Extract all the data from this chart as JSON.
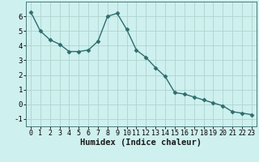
{
  "x": [
    0,
    1,
    2,
    3,
    4,
    5,
    6,
    7,
    8,
    9,
    10,
    11,
    12,
    13,
    14,
    15,
    16,
    17,
    18,
    19,
    20,
    21,
    22,
    23
  ],
  "y": [
    6.3,
    5.0,
    4.4,
    4.1,
    3.6,
    3.6,
    3.7,
    4.3,
    6.0,
    6.2,
    5.1,
    3.7,
    3.2,
    2.5,
    1.9,
    0.8,
    0.7,
    0.5,
    0.3,
    0.1,
    -0.1,
    -0.5,
    -0.6,
    -0.7
  ],
  "line_color": "#2d6e6e",
  "marker": "D",
  "markersize": 2.5,
  "linewidth": 1.0,
  "bg_color": "#cef0ee",
  "grid_color": "#aed4d0",
  "xlabel": "Humidex (Indice chaleur)",
  "xlabel_fontsize": 7.5,
  "xlabel_bold": true,
  "xlim": [
    -0.5,
    23.5
  ],
  "ylim": [
    -1.5,
    7.0
  ],
  "yticks": [
    -1,
    0,
    1,
    2,
    3,
    4,
    5,
    6
  ],
  "xticks": [
    0,
    1,
    2,
    3,
    4,
    5,
    6,
    7,
    8,
    9,
    10,
    11,
    12,
    13,
    14,
    15,
    16,
    17,
    18,
    19,
    20,
    21,
    22,
    23
  ],
  "tick_fontsize": 6.0,
  "ytick_fontsize": 6.5
}
